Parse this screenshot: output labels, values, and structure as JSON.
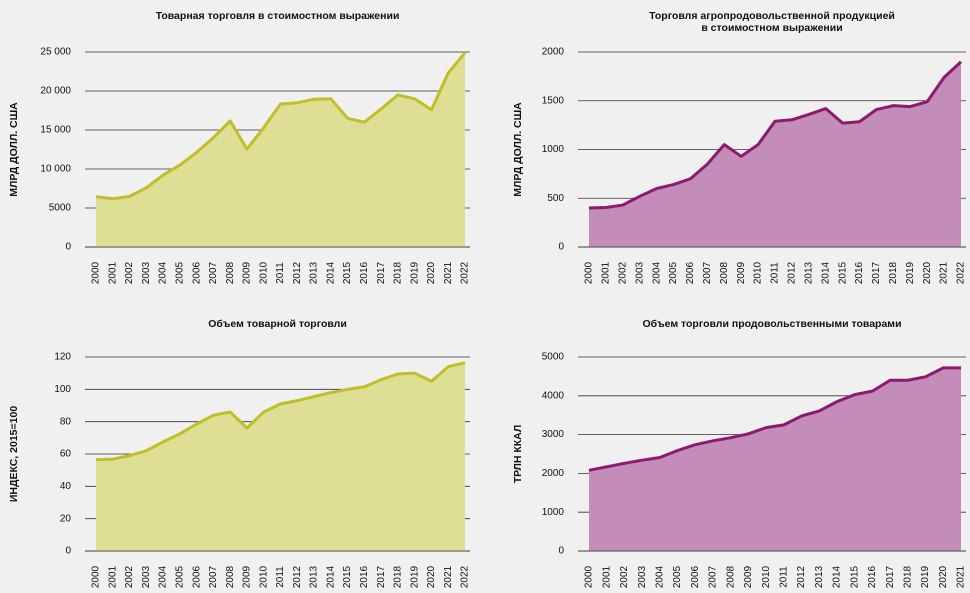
{
  "chart_data": [
    {
      "type": "area",
      "title": [
        "Товарная торговля в стоимостном выражении"
      ],
      "y_label": "МЛРД ДОЛЛ. США",
      "categories": [
        "2000",
        "2001",
        "2002",
        "2003",
        "2004",
        "2005",
        "2006",
        "2007",
        "2008",
        "2009",
        "2010",
        "2011",
        "2012",
        "2013",
        "2014",
        "2015",
        "2016",
        "2017",
        "2018",
        "2019",
        "2020",
        "2021",
        "2022"
      ],
      "values": [
        6450,
        6190,
        6490,
        7590,
        9220,
        10500,
        12130,
        14010,
        16160,
        12560,
        15300,
        18340,
        18500,
        18950,
        19000,
        16500,
        16000,
        17700,
        19500,
        19000,
        17600,
        22300,
        24900
      ],
      "color": "#bfbf2a",
      "fill": "#dede94",
      "ylim": [
        0,
        25000
      ],
      "yticks": [
        0,
        5000,
        {
          "value": 10000,
          "label": "10 000"
        },
        {
          "value": 15000,
          "label": "15 000"
        },
        {
          "value": 20000,
          "label": "20 000"
        },
        {
          "value": 25000,
          "label": "25 000"
        }
      ],
      "grid": true
    },
    {
      "type": "area",
      "title": [
        "Торговля агропродовольственной продукцией",
        "в стоимостном выражении"
      ],
      "y_label": "МЛРД ДОЛЛ. США",
      "categories": [
        "2000",
        "2001",
        "2002",
        "2003",
        "2004",
        "2005",
        "2006",
        "2007",
        "2008",
        "2009",
        "2010",
        "2011",
        "2012",
        "2013",
        "2014",
        "2015",
        "2016",
        "2017",
        "2018",
        "2019",
        "2020",
        "2021",
        "2022"
      ],
      "values": [
        400,
        405,
        430,
        520,
        600,
        640,
        700,
        850,
        1050,
        930,
        1050,
        1290,
        1305,
        1360,
        1420,
        1270,
        1285,
        1410,
        1450,
        1440,
        1490,
        1740,
        1900
      ],
      "color": "#8c1a6e",
      "fill": "#c48cb8",
      "ylim": [
        0,
        2000
      ],
      "yticks": [
        0,
        500,
        1000,
        1500,
        2000
      ],
      "grid": true
    },
    {
      "type": "area",
      "title": [
        "Объем товарной торговли"
      ],
      "y_label": "ИНДЕКС, 2015=100",
      "categories": [
        "2000",
        "2001",
        "2002",
        "2003",
        "2004",
        "2005",
        "2006",
        "2007",
        "2008",
        "2009",
        "2010",
        "2011",
        "2012",
        "2013",
        "2014",
        "2015",
        "2016",
        "2017",
        "2018",
        "2019",
        "2020",
        "2021",
        "2022"
      ],
      "values": [
        56.5,
        56.8,
        59,
        62,
        67.5,
        72.5,
        78.5,
        84,
        86,
        76,
        86,
        91,
        93,
        95.5,
        98,
        100,
        101.5,
        106,
        109.5,
        110,
        105,
        114,
        116.5
      ],
      "color": "#bfbf2a",
      "fill": "#dede94",
      "ylim": [
        0,
        120
      ],
      "yticks": [
        0,
        20,
        40,
        60,
        80,
        100,
        120
      ],
      "grid": true
    },
    {
      "type": "area",
      "title": [
        "Объем торговли продовольственными товарами"
      ],
      "y_label": "ТРЛН ККАЛ",
      "categories": [
        "2000",
        "2001",
        "2002",
        "2003",
        "2004",
        "2005",
        "2006",
        "2007",
        "2008",
        "2009",
        "2010",
        "2011",
        "2012",
        "2013",
        "2014",
        "2015",
        "2016",
        "2017",
        "2018",
        "2019",
        "2020",
        "2021"
      ],
      "values": [
        2080,
        2170,
        2260,
        2340,
        2410,
        2590,
        2740,
        2840,
        2920,
        3020,
        3180,
        3250,
        3480,
        3610,
        3850,
        4030,
        4120,
        4400,
        4400,
        4490,
        4720,
        4720
      ],
      "color": "#8c1a6e",
      "fill": "#c48cb8",
      "ylim": [
        0,
        5000
      ],
      "yticks": [
        0,
        1000,
        2000,
        3000,
        4000,
        5000
      ],
      "grid": true
    }
  ]
}
